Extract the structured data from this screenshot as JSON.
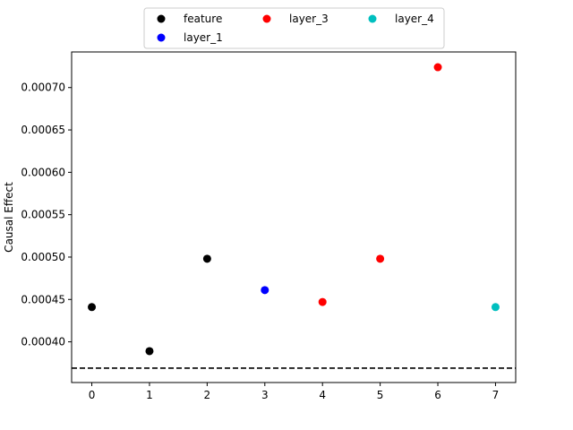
{
  "chart_data": {
    "type": "scatter",
    "ylabel": "Causal Effect",
    "xlim": [
      -0.35,
      7.35
    ],
    "ylim": [
      0.000352,
      0.000742
    ],
    "x_ticks": [
      0,
      1,
      2,
      3,
      4,
      5,
      6,
      7
    ],
    "x_tick_labels": [
      "0",
      "1",
      "2",
      "3",
      "4",
      "5",
      "6",
      "7"
    ],
    "y_ticks": [
      0.0004,
      0.00045,
      0.0005,
      0.00055,
      0.0006,
      0.00065,
      0.0007
    ],
    "y_tick_labels": [
      "0.00040",
      "0.00045",
      "0.00050",
      "0.00055",
      "0.00060",
      "0.00065",
      "0.00070"
    ],
    "baseline": {
      "y": 0.000369,
      "style": "dashed",
      "color": "#000000"
    },
    "grid": false,
    "legend_position": "top-center",
    "series": [
      {
        "name": "feature",
        "color": "#000000",
        "points": [
          [
            0,
            0.000441
          ],
          [
            1,
            0.000389
          ],
          [
            2,
            0.000498
          ]
        ]
      },
      {
        "name": "layer_1",
        "color": "#0000ff",
        "points": [
          [
            3,
            0.000461
          ]
        ]
      },
      {
        "name": "layer_3",
        "color": "#ff0000",
        "points": [
          [
            4,
            0.000447
          ],
          [
            5,
            0.000498
          ],
          [
            6,
            0.000724
          ]
        ]
      },
      {
        "name": "layer_4",
        "color": "#00bfbf",
        "points": [
          [
            7,
            0.000441
          ]
        ]
      }
    ]
  }
}
